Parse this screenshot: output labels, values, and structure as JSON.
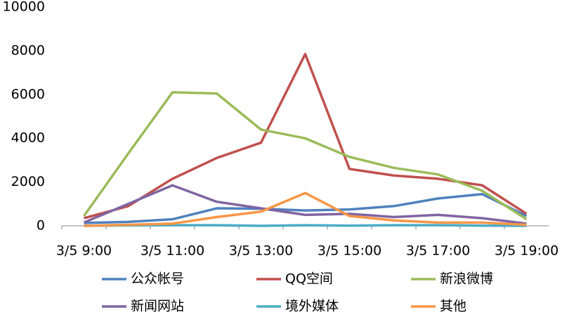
{
  "chart_data": {
    "type": "line",
    "categories": [
      "3/5 9:00",
      null,
      "3/5 11:00",
      null,
      "3/5 13:00",
      null,
      "3/5 15:00",
      null,
      "3/5 17:00",
      null,
      "3/5 19:00"
    ],
    "series": [
      {
        "name": "公众帐号",
        "color": "#4f81bd",
        "values": [
          130,
          180,
          300,
          800,
          780,
          700,
          750,
          900,
          1250,
          1450,
          450
        ]
      },
      {
        "name": "QQ空间",
        "color": "#c0504d",
        "values": [
          350,
          900,
          2150,
          3100,
          3800,
          7850,
          2600,
          2300,
          2150,
          1850,
          550
        ]
      },
      {
        "name": "新浪微博",
        "color": "#9bbb59",
        "values": [
          450,
          3300,
          6100,
          6050,
          4400,
          4000,
          3150,
          2650,
          2350,
          1600,
          300
        ]
      },
      {
        "name": "新闻网站",
        "color": "#8064a2",
        "values": [
          150,
          1000,
          1850,
          1100,
          800,
          500,
          550,
          400,
          500,
          350,
          100
        ]
      },
      {
        "name": "境外媒体",
        "color": "#4bacc6",
        "values": [
          0,
          20,
          30,
          30,
          0,
          30,
          10,
          30,
          30,
          10,
          0
        ]
      },
      {
        "name": "其他",
        "color": "#f79646",
        "values": [
          0,
          50,
          100,
          400,
          650,
          1500,
          450,
          250,
          150,
          150,
          50
        ]
      }
    ],
    "ylim": [
      0,
      10000
    ],
    "yticks": [
      0,
      2000,
      4000,
      6000,
      8000,
      10000
    ],
    "legend": "bottom"
  }
}
